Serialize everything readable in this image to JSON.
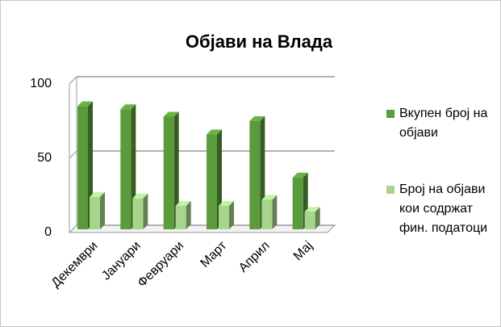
{
  "chart_data": {
    "type": "bar3d",
    "title": "Објави на Влада",
    "categories": [
      "Декември",
      "Јануари",
      "Февруари",
      "Март",
      "Април",
      "Мај"
    ],
    "series": [
      {
        "name": "Вкупен број на објави",
        "color": "#5c9b3b",
        "values": [
          85,
          83,
          78,
          66,
          75,
          37
        ]
      },
      {
        "name": "Број на објави кои содржат фин. податоци",
        "color": "#a7d58c",
        "values": [
          24,
          23,
          18,
          18,
          22,
          14
        ]
      }
    ],
    "ylim": [
      0,
      100
    ],
    "yticks": [
      0,
      50,
      100
    ],
    "grid": true,
    "legend": "right"
  }
}
